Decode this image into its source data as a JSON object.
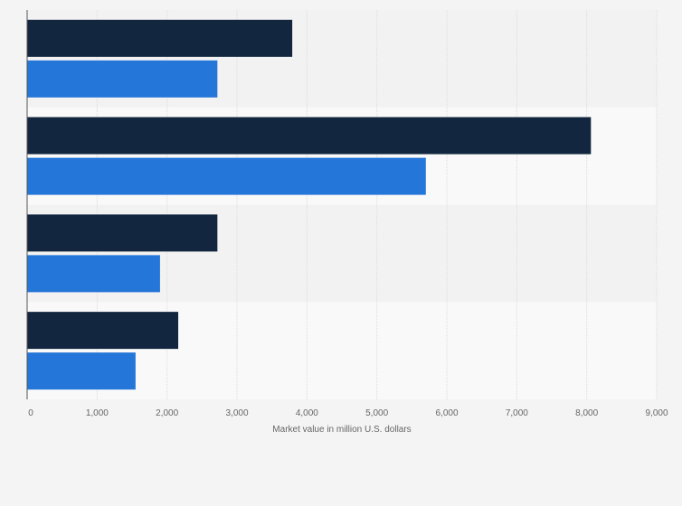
{
  "chart_data": {
    "type": "bar",
    "orientation": "horizontal",
    "categories": [
      "",
      "",
      "",
      ""
    ],
    "series": [
      {
        "name": "",
        "color": "#12273f",
        "values": [
          3790,
          8060,
          2720,
          2160
        ]
      },
      {
        "name": "",
        "color": "#2576d9",
        "values": [
          2720,
          5700,
          1900,
          1550
        ]
      }
    ],
    "xlim": [
      0,
      9000
    ],
    "xticks": [
      0,
      1000,
      2000,
      3000,
      4000,
      5000,
      6000,
      7000,
      8000,
      9000
    ],
    "xtick_labels": [
      "0",
      "1,000",
      "2,000",
      "3,000",
      "4,000",
      "5,000",
      "6,000",
      "7,000",
      "8,000",
      "9,000"
    ],
    "xlabel": "Market value in million U.S. dollars",
    "ylabel": "",
    "title": "",
    "grid": true,
    "colors": {
      "background": "#f4f4f4",
      "band_light": "#f9f9f9",
      "band_dark": "#f2f2f2",
      "grid": "#dcdcdc",
      "axis": "#555555"
    }
  }
}
